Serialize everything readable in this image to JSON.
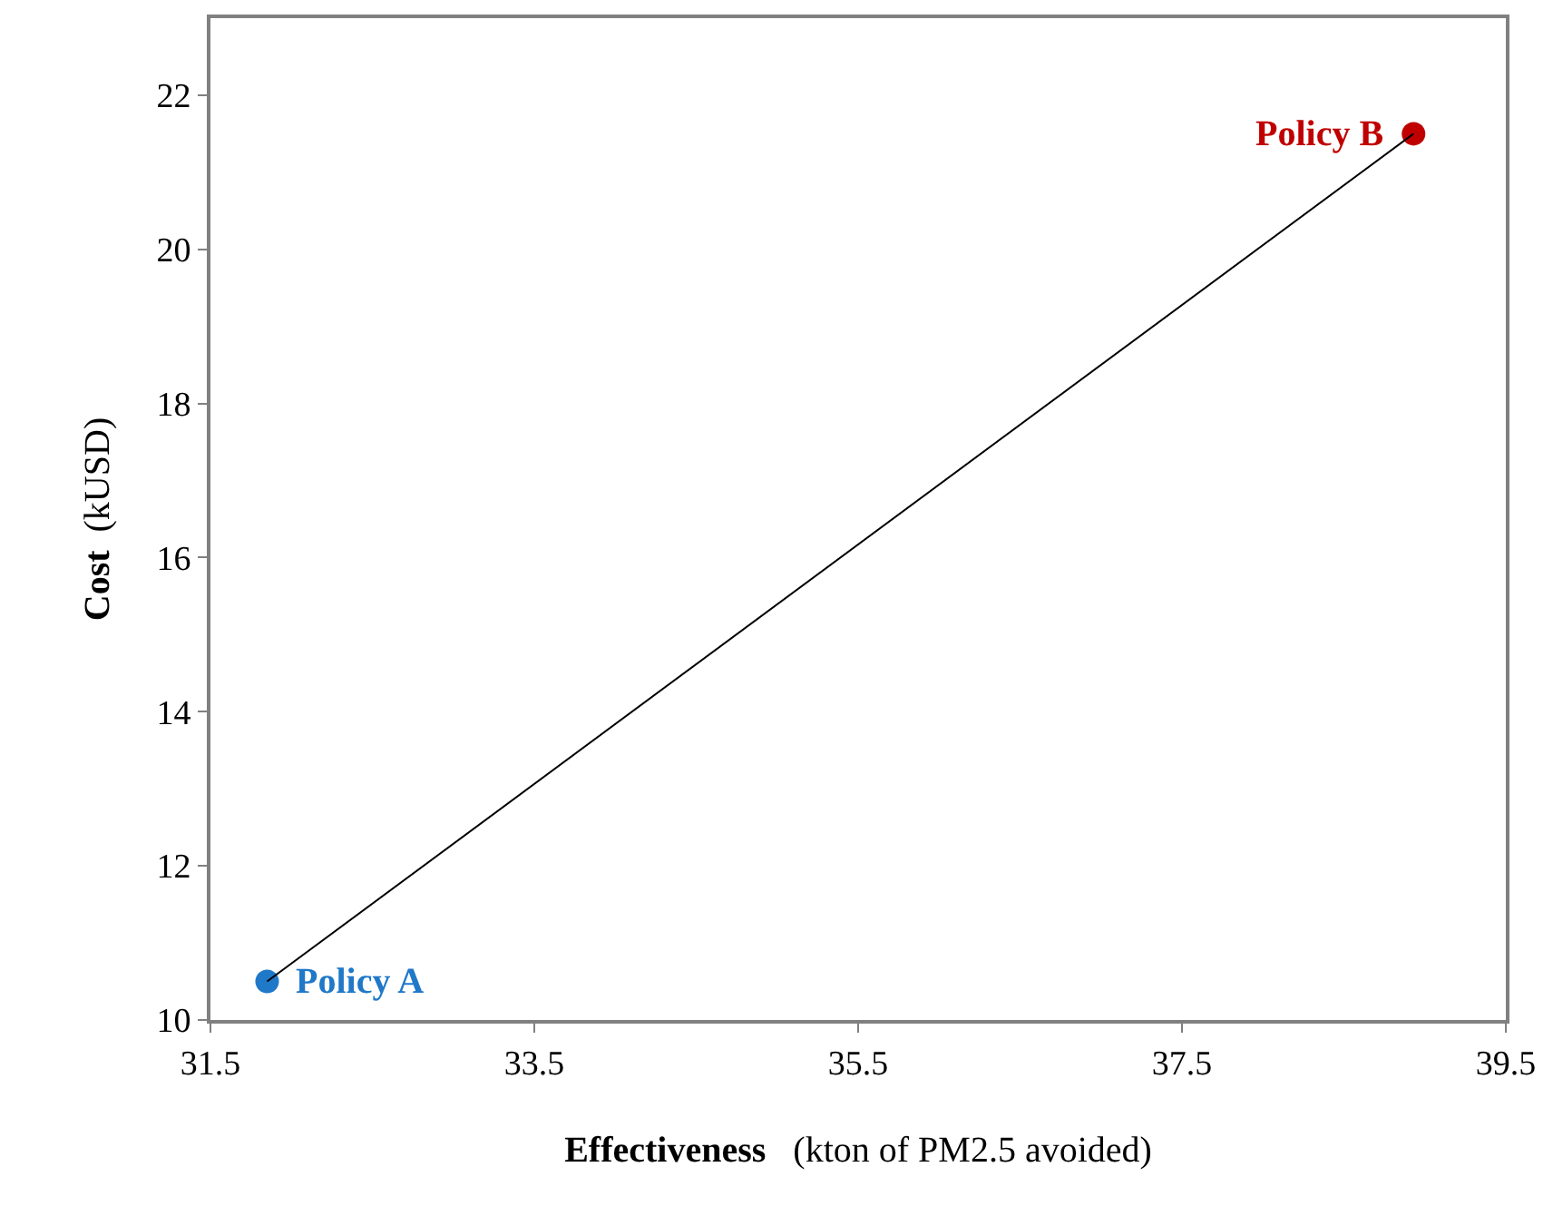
{
  "chart_data": {
    "type": "scatter",
    "xlabel": "Effectiveness   (kton of PM2.5 avoided)",
    "ylabel": "Cost  (kUSD)",
    "x": [
      31.85,
      38.93
    ],
    "xlim": [
      31.5,
      39.5
    ],
    "xticks": [
      31.5,
      33.5,
      35.5,
      37.5,
      39.5
    ],
    "ylim": [
      10,
      23
    ],
    "yticks": [
      10,
      12,
      14,
      16,
      18,
      20,
      22
    ],
    "grid": false,
    "legend": false,
    "marker": "circle",
    "series": [
      {
        "type": "line",
        "color": "#000000",
        "marker": "none",
        "values": [
          10.5,
          21.5
        ]
      },
      {
        "name": "Policy A",
        "color": "#1f78c8",
        "values": [
          10.5,
          null
        ]
      },
      {
        "name": "Policy B",
        "color": "#c00000",
        "values": [
          null,
          21.5
        ]
      }
    ]
  }
}
